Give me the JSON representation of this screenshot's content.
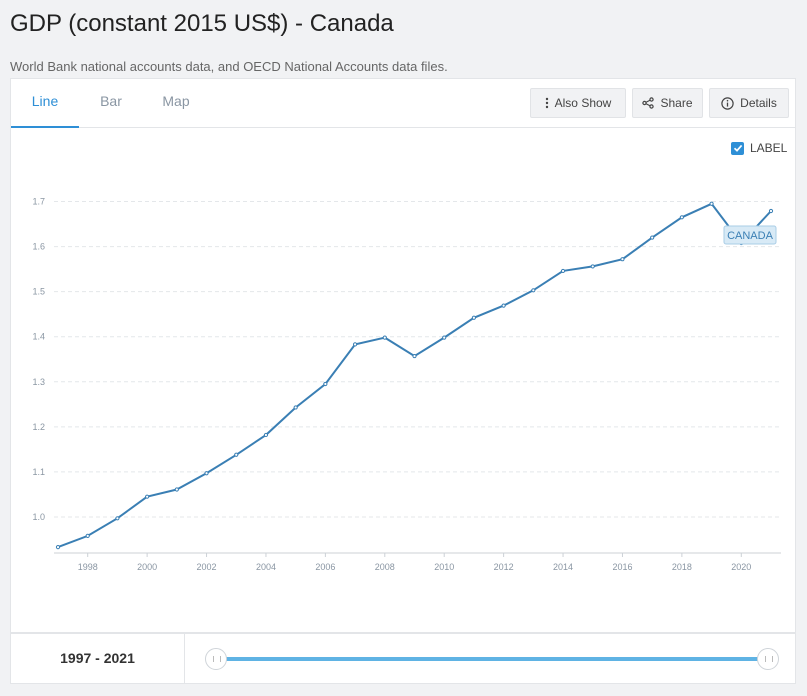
{
  "page": {
    "title": "GDP (constant 2015 US$) - Canada",
    "source": "World Bank national accounts data, and OECD National Accounts data files."
  },
  "tabs": [
    {
      "label": "Line",
      "active": true
    },
    {
      "label": "Bar",
      "active": false
    },
    {
      "label": "Map",
      "active": false
    }
  ],
  "toolbar": {
    "also_show": "Also Show",
    "share": "Share",
    "details": "Details"
  },
  "label_toggle": {
    "label": "LABEL",
    "checked": true
  },
  "range": {
    "label": "1997 - 2021",
    "start": 1997,
    "end": 2021
  },
  "chart_data": {
    "type": "line",
    "title": "",
    "xlabel": "",
    "ylabel": "",
    "x": [
      1997,
      1998,
      1999,
      2000,
      2001,
      2002,
      2003,
      2004,
      2005,
      2006,
      2007,
      2008,
      2009,
      2010,
      2011,
      2012,
      2013,
      2014,
      2015,
      2016,
      2017,
      2018,
      2019,
      2020,
      2021
    ],
    "series": [
      {
        "name": "CANADA",
        "values": [
          0.933,
          0.958,
          0.997,
          1.045,
          1.061,
          1.097,
          1.138,
          1.182,
          1.243,
          1.295,
          1.383,
          1.398,
          1.357,
          1.398,
          1.442,
          1.469,
          1.503,
          1.546,
          1.556,
          1.572,
          1.62,
          1.665,
          1.695,
          1.608,
          1.679
        ]
      }
    ],
    "x_ticks": [
      "1998",
      "2000",
      "2002",
      "2004",
      "2006",
      "2008",
      "2010",
      "2012",
      "2014",
      "2016",
      "2018",
      "2020"
    ],
    "y_ticks": [
      "1.0",
      "1.1",
      "1.2",
      "1.3",
      "1.4",
      "1.5",
      "1.6",
      "1.7"
    ],
    "xlim": [
      1997,
      2021
    ],
    "ylim": [
      0.92,
      1.75
    ],
    "grid": true,
    "line_color": "#3a7fb4",
    "series_label_placement": "end-of-line"
  }
}
